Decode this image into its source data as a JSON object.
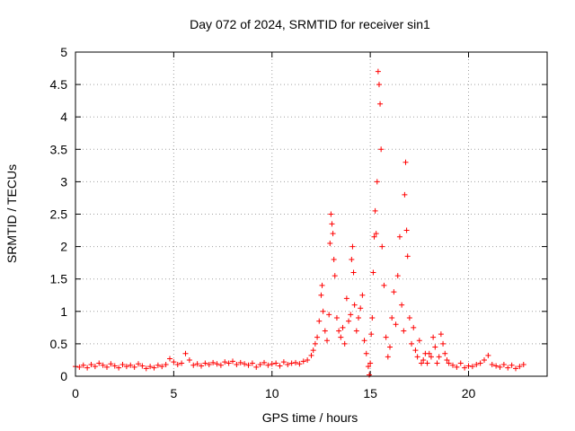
{
  "chart_data": {
    "type": "scatter",
    "title": "Day 072 of 2024, SRMTID for receiver sin1",
    "xlabel": "GPS time / hours",
    "ylabel": "SRMTID / TECUs",
    "xlim": [
      0,
      24
    ],
    "ylim": [
      0,
      5
    ],
    "xticks": [
      0,
      5,
      10,
      15,
      20
    ],
    "yticks": [
      0,
      0.5,
      1,
      1.5,
      2,
      2.5,
      3,
      3.5,
      4,
      4.5,
      5
    ],
    "xtick_labels": [
      "0",
      "5",
      "10",
      "15",
      "20"
    ],
    "ytick_labels": [
      "0",
      "0.5",
      "1",
      "1.5",
      "2",
      "2.5",
      "3",
      "3.5",
      "4",
      "4.5",
      "5"
    ],
    "grid": true,
    "marker": "+",
    "color": "#ff0000",
    "series": [
      {
        "name": "sin1",
        "points": [
          [
            0.0,
            0.15
          ],
          [
            0.2,
            0.14
          ],
          [
            0.4,
            0.17
          ],
          [
            0.6,
            0.13
          ],
          [
            0.8,
            0.18
          ],
          [
            1.0,
            0.15
          ],
          [
            1.2,
            0.2
          ],
          [
            1.4,
            0.17
          ],
          [
            1.6,
            0.14
          ],
          [
            1.8,
            0.19
          ],
          [
            2.0,
            0.16
          ],
          [
            2.2,
            0.13
          ],
          [
            2.4,
            0.18
          ],
          [
            2.6,
            0.15
          ],
          [
            2.8,
            0.17
          ],
          [
            3.0,
            0.14
          ],
          [
            3.2,
            0.19
          ],
          [
            3.4,
            0.16
          ],
          [
            3.6,
            0.12
          ],
          [
            3.8,
            0.15
          ],
          [
            4.0,
            0.13
          ],
          [
            4.2,
            0.17
          ],
          [
            4.4,
            0.15
          ],
          [
            4.6,
            0.18
          ],
          [
            4.8,
            0.27
          ],
          [
            5.0,
            0.22
          ],
          [
            5.2,
            0.18
          ],
          [
            5.4,
            0.2
          ],
          [
            5.6,
            0.35
          ],
          [
            5.8,
            0.25
          ],
          [
            6.0,
            0.17
          ],
          [
            6.2,
            0.19
          ],
          [
            6.4,
            0.16
          ],
          [
            6.6,
            0.2
          ],
          [
            6.8,
            0.18
          ],
          [
            7.0,
            0.21
          ],
          [
            7.2,
            0.19
          ],
          [
            7.4,
            0.17
          ],
          [
            7.6,
            0.22
          ],
          [
            7.8,
            0.2
          ],
          [
            8.0,
            0.23
          ],
          [
            8.2,
            0.18
          ],
          [
            8.4,
            0.21
          ],
          [
            8.6,
            0.19
          ],
          [
            8.8,
            0.17
          ],
          [
            9.0,
            0.2
          ],
          [
            9.2,
            0.14
          ],
          [
            9.4,
            0.18
          ],
          [
            9.6,
            0.21
          ],
          [
            9.8,
            0.17
          ],
          [
            10.0,
            0.19
          ],
          [
            10.2,
            0.2
          ],
          [
            10.4,
            0.16
          ],
          [
            10.6,
            0.22
          ],
          [
            10.8,
            0.18
          ],
          [
            11.0,
            0.2
          ],
          [
            11.2,
            0.21
          ],
          [
            11.4,
            0.19
          ],
          [
            11.6,
            0.23
          ],
          [
            11.8,
            0.25
          ],
          [
            12.0,
            0.32
          ],
          [
            12.1,
            0.4
          ],
          [
            12.2,
            0.5
          ],
          [
            12.3,
            0.6
          ],
          [
            12.4,
            0.85
          ],
          [
            12.5,
            1.25
          ],
          [
            12.55,
            1.4
          ],
          [
            12.6,
            1.0
          ],
          [
            12.7,
            0.7
          ],
          [
            12.8,
            0.55
          ],
          [
            12.9,
            0.95
          ],
          [
            12.95,
            2.05
          ],
          [
            13.0,
            2.5
          ],
          [
            13.05,
            2.35
          ],
          [
            13.1,
            2.2
          ],
          [
            13.15,
            1.8
          ],
          [
            13.2,
            1.55
          ],
          [
            13.3,
            0.9
          ],
          [
            13.4,
            0.7
          ],
          [
            13.5,
            0.6
          ],
          [
            13.6,
            0.75
          ],
          [
            13.7,
            0.5
          ],
          [
            13.8,
            1.2
          ],
          [
            13.9,
            0.85
          ],
          [
            14.0,
            0.95
          ],
          [
            14.05,
            1.8
          ],
          [
            14.1,
            2.0
          ],
          [
            14.15,
            1.6
          ],
          [
            14.2,
            1.1
          ],
          [
            14.3,
            0.7
          ],
          [
            14.4,
            0.9
          ],
          [
            14.5,
            1.05
          ],
          [
            14.6,
            1.25
          ],
          [
            14.7,
            0.55
          ],
          [
            14.8,
            0.35
          ],
          [
            14.9,
            0.15
          ],
          [
            14.95,
            0.02
          ],
          [
            15.0,
            0.2
          ],
          [
            15.05,
            0.65
          ],
          [
            15.1,
            0.9
          ],
          [
            15.15,
            1.6
          ],
          [
            15.2,
            2.15
          ],
          [
            15.25,
            2.55
          ],
          [
            15.3,
            2.2
          ],
          [
            15.35,
            3.0
          ],
          [
            15.4,
            4.7
          ],
          [
            15.45,
            4.5
          ],
          [
            15.5,
            4.2
          ],
          [
            15.55,
            3.5
          ],
          [
            15.6,
            2.0
          ],
          [
            15.7,
            1.4
          ],
          [
            15.8,
            0.6
          ],
          [
            15.9,
            0.3
          ],
          [
            16.0,
            0.45
          ],
          [
            16.1,
            0.9
          ],
          [
            16.2,
            1.3
          ],
          [
            16.3,
            0.8
          ],
          [
            16.4,
            1.55
          ],
          [
            16.5,
            2.15
          ],
          [
            16.6,
            1.1
          ],
          [
            16.7,
            0.7
          ],
          [
            16.75,
            2.8
          ],
          [
            16.8,
            3.3
          ],
          [
            16.85,
            2.25
          ],
          [
            16.9,
            1.85
          ],
          [
            17.0,
            0.9
          ],
          [
            17.1,
            0.5
          ],
          [
            17.2,
            0.75
          ],
          [
            17.3,
            0.4
          ],
          [
            17.4,
            0.3
          ],
          [
            17.5,
            0.55
          ],
          [
            17.6,
            0.2
          ],
          [
            17.7,
            0.25
          ],
          [
            17.8,
            0.35
          ],
          [
            17.9,
            0.2
          ],
          [
            18.0,
            0.35
          ],
          [
            18.1,
            0.3
          ],
          [
            18.2,
            0.6
          ],
          [
            18.3,
            0.45
          ],
          [
            18.4,
            0.2
          ],
          [
            18.5,
            0.3
          ],
          [
            18.6,
            0.65
          ],
          [
            18.7,
            0.5
          ],
          [
            18.8,
            0.35
          ],
          [
            18.9,
            0.25
          ],
          [
            19.0,
            0.2
          ],
          [
            19.2,
            0.17
          ],
          [
            19.4,
            0.14
          ],
          [
            19.6,
            0.2
          ],
          [
            19.8,
            0.13
          ],
          [
            20.0,
            0.16
          ],
          [
            20.2,
            0.15
          ],
          [
            20.4,
            0.18
          ],
          [
            20.6,
            0.2
          ],
          [
            20.8,
            0.25
          ],
          [
            21.0,
            0.32
          ],
          [
            21.2,
            0.18
          ],
          [
            21.4,
            0.16
          ],
          [
            21.6,
            0.14
          ],
          [
            21.8,
            0.18
          ],
          [
            22.0,
            0.13
          ],
          [
            22.2,
            0.17
          ],
          [
            22.4,
            0.12
          ],
          [
            22.6,
            0.15
          ],
          [
            22.8,
            0.18
          ]
        ]
      }
    ]
  }
}
